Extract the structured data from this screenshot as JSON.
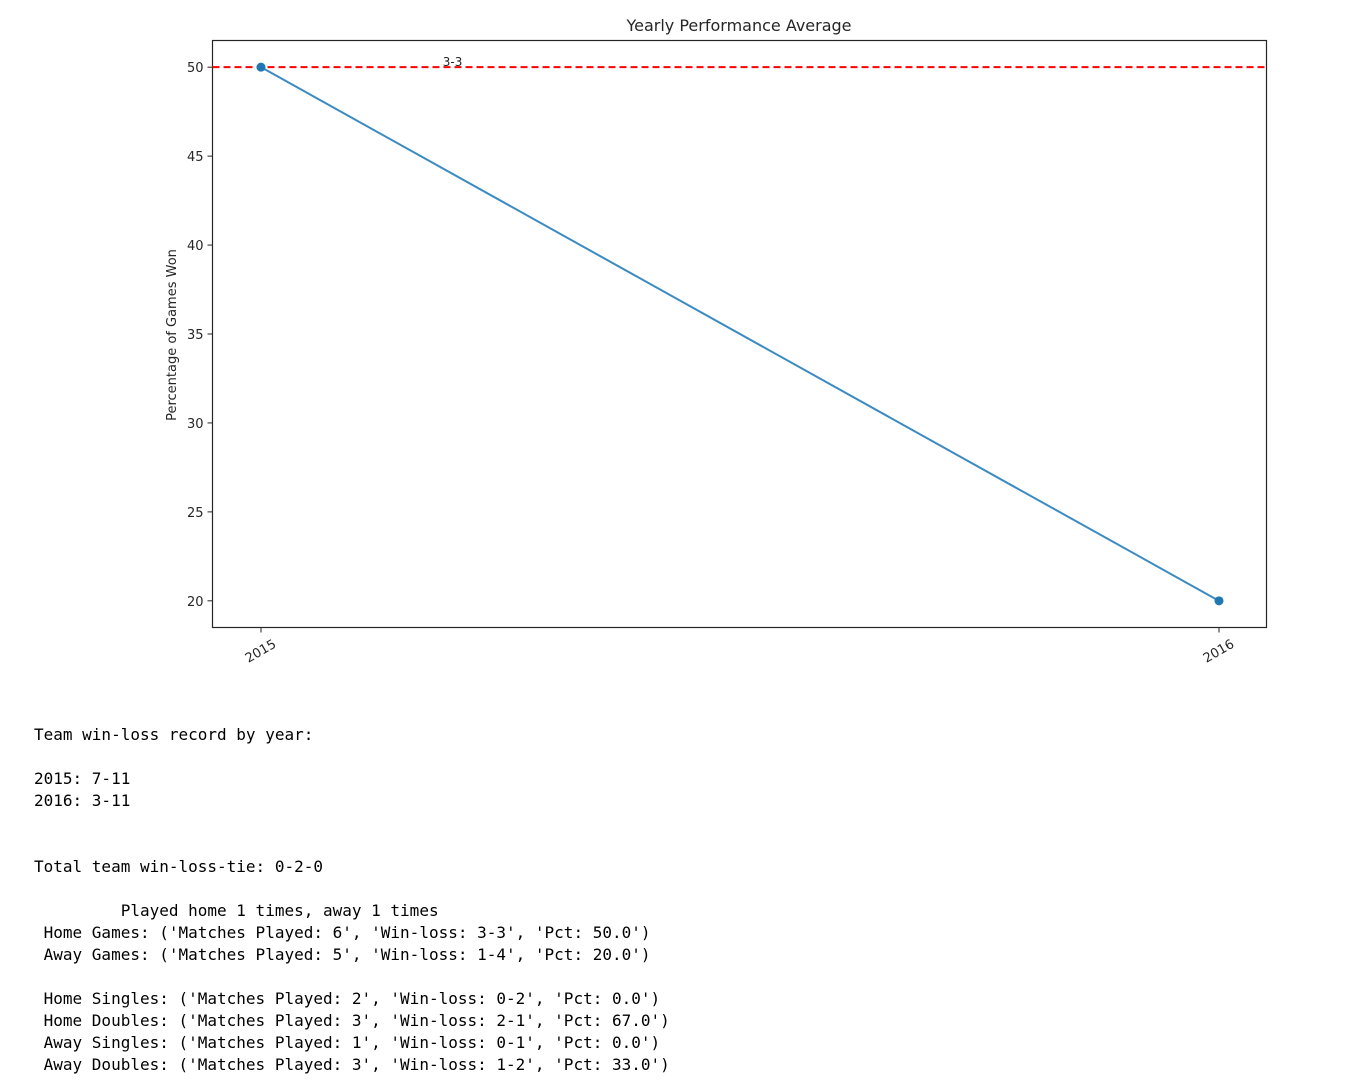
{
  "chart_data": {
    "type": "line",
    "title": "Yearly Performance Average",
    "xlabel": "",
    "ylabel": "Percentage of Games Won",
    "categories": [
      "2015",
      "2016"
    ],
    "series": [
      {
        "values": [
          50,
          20
        ],
        "color": "#3b8bc2",
        "marker": "circle",
        "marker_color": "#1f77b4"
      }
    ],
    "yticks": [
      20,
      25,
      30,
      35,
      40,
      45,
      50
    ],
    "ylim": [
      18.5,
      51.5
    ],
    "reference_line": {
      "y": 50,
      "color": "#ff0000",
      "style": "dashed"
    },
    "annotations": [
      {
        "text": "3-3",
        "x": 0.2,
        "y": 50
      }
    ],
    "grid": false
  },
  "output": {
    "lines": [
      "Team win-loss record by year:",
      "",
      "2015: 7-11",
      "2016: 3-11",
      "",
      "",
      "Total team win-loss-tie: 0-2-0",
      "",
      "         Played home 1 times, away 1 times",
      " Home Games: ('Matches Played: 6', 'Win-loss: 3-3', 'Pct: 50.0')",
      " Away Games: ('Matches Played: 5', 'Win-loss: 1-4', 'Pct: 20.0')",
      "",
      " Home Singles: ('Matches Played: 2', 'Win-loss: 0-2', 'Pct: 0.0')",
      " Home Doubles: ('Matches Played: 3', 'Win-loss: 2-1', 'Pct: 67.0')",
      " Away Singles: ('Matches Played: 1', 'Win-loss: 0-1', 'Pct: 0.0')",
      " Away Doubles: ('Matches Played: 3', 'Win-loss: 1-2', 'Pct: 33.0')"
    ]
  }
}
